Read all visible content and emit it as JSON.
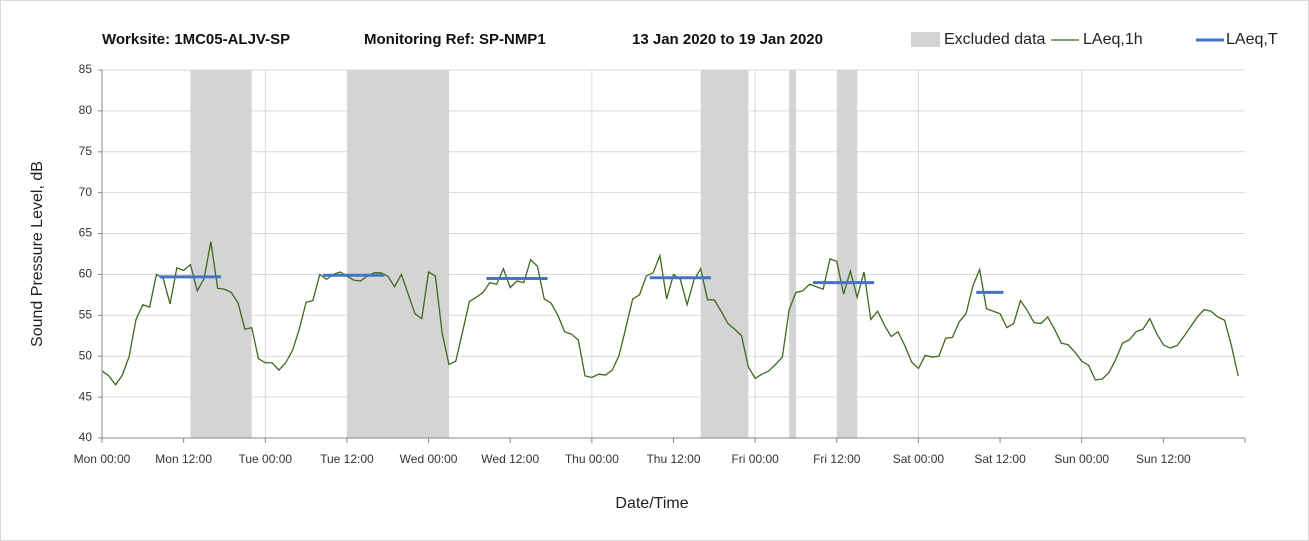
{
  "chart_data": {
    "type": "line",
    "title": [
      "Worksite: 1MC05-ALJV-SP",
      "Monitoring Ref: SP-NMP1",
      "13 Jan 2020 to 19 Jan 2020"
    ],
    "x_label": "Date/Time",
    "y_label": "Sound Pressure Level, dB",
    "xlim": [
      0,
      168
    ],
    "ylim": [
      40,
      85
    ],
    "yticks": [
      40,
      45,
      50,
      55,
      60,
      65,
      70,
      75,
      80,
      85
    ],
    "xticks": [
      {
        "value": 0,
        "label": "Mon 00:00"
      },
      {
        "value": 12,
        "label": "Mon 12:00"
      },
      {
        "value": 24,
        "label": "Tue 00:00"
      },
      {
        "value": 36,
        "label": "Tue 12:00"
      },
      {
        "value": 48,
        "label": "Wed 00:00"
      },
      {
        "value": 60,
        "label": "Wed 12:00"
      },
      {
        "value": 72,
        "label": "Thu 00:00"
      },
      {
        "value": 84,
        "label": "Thu 12:00"
      },
      {
        "value": 96,
        "label": "Fri 00:00"
      },
      {
        "value": 108,
        "label": "Fri 12:00"
      },
      {
        "value": 120,
        "label": "Sat 00:00"
      },
      {
        "value": 132,
        "label": "Sat 12:00"
      },
      {
        "value": 144,
        "label": "Sun 00:00"
      },
      {
        "value": 156,
        "label": "Sun 12:00"
      }
    ],
    "grid": true,
    "excluded": {
      "name": "Excluded data",
      "color": "#d4d4d4",
      "ranges": [
        [
          13,
          22
        ],
        [
          36,
          51
        ],
        [
          88,
          95
        ],
        [
          101,
          102
        ],
        [
          108,
          111
        ]
      ]
    },
    "series": [
      {
        "name": "LAeq,1h",
        "color": "#3c6a1e",
        "x": [
          0,
          1,
          2,
          3,
          4,
          5,
          6,
          7,
          8,
          9,
          10,
          11,
          12,
          13,
          14,
          15,
          16,
          17,
          18,
          19,
          20,
          21,
          22,
          23,
          24,
          25,
          26,
          27,
          28,
          29,
          30,
          31,
          32,
          33,
          34,
          35,
          36,
          37,
          38,
          39,
          40,
          41,
          42,
          43,
          44,
          45,
          46,
          47,
          48,
          49,
          50,
          51,
          52,
          53,
          54,
          55,
          56,
          57,
          58,
          59,
          60,
          61,
          62,
          63,
          64,
          65,
          66,
          67,
          68,
          69,
          70,
          71,
          72,
          73,
          74,
          75,
          76,
          77,
          78,
          79,
          80,
          81,
          82,
          83,
          84,
          85,
          86,
          87,
          88,
          89,
          90,
          91,
          92,
          93,
          94,
          95,
          96,
          97,
          98,
          99,
          100,
          101,
          102,
          103,
          104,
          105,
          106,
          107,
          108,
          109,
          110,
          111,
          112,
          113,
          114,
          115,
          116,
          117,
          118,
          119,
          120,
          121,
          122,
          123,
          124,
          125,
          126,
          127,
          128,
          129,
          130,
          131,
          132,
          133,
          134,
          135,
          136,
          137,
          138,
          139,
          140,
          141,
          142,
          143,
          144,
          145,
          146,
          147,
          148,
          149,
          150,
          151,
          152,
          153,
          154,
          155,
          156,
          157,
          158,
          159,
          160,
          161,
          162,
          163,
          164,
          165,
          166,
          167
        ],
        "values": [
          48.2,
          47.6,
          46.5,
          47.7,
          50,
          54.5,
          56.3,
          56,
          60,
          59.5,
          56.4,
          60.8,
          60.5,
          61.2,
          58,
          59.5,
          64,
          58.3,
          58.2,
          57.8,
          56.5,
          53.3,
          53.5,
          49.7,
          49.2,
          49.2,
          48.3,
          49.2,
          50.7,
          53.3,
          56.6,
          56.8,
          60,
          59.4,
          60,
          60.3,
          59.8,
          59.3,
          59.2,
          59.8,
          60.2,
          60.2,
          59.8,
          58.5,
          60,
          57.6,
          55.2,
          54.6,
          60.3,
          59.8,
          52.8,
          49,
          49.4,
          53,
          56.7,
          57.2,
          57.8,
          59,
          58.8,
          60.7,
          58.4,
          59.2,
          59,
          61.8,
          61,
          57,
          56.5,
          55,
          53,
          52.7,
          52,
          47.6,
          47.4,
          47.8,
          47.7,
          48.3,
          50.1,
          53.5,
          57,
          57.5,
          59.8,
          60.2,
          62.3,
          57,
          60,
          59.4,
          56.3,
          59.3,
          60.7,
          56.9,
          56.9,
          55.5,
          54,
          53.3,
          52.5,
          48.7,
          47.3,
          47.8,
          48.2,
          49,
          49.9,
          55.7,
          57.8,
          58,
          58.8,
          58.5,
          58.2,
          61.9,
          61.6,
          57.6,
          60.4,
          57.2,
          60.3,
          54.5,
          55.5,
          53.8,
          52.4,
          53,
          51.3,
          49.3,
          48.5,
          50.1,
          49.9,
          50,
          52.2,
          52.3,
          54.2,
          55.2,
          58.6,
          60.6,
          55.8,
          55.5,
          55.2,
          53.5,
          54,
          56.8,
          55.6,
          54.1,
          54,
          54.8,
          53.3,
          51.6,
          51.4,
          50.5,
          49.4,
          48.9,
          47.1,
          47.2,
          48,
          49.6,
          51.6,
          52,
          53,
          53.3,
          54.6,
          52.8,
          51.4,
          51,
          51.3,
          52.4,
          53.6,
          54.8,
          55.7,
          55.5,
          54.8,
          54.4,
          51.3,
          47.6
        ]
      },
      {
        "name": "LAeq,T",
        "color": "#4472c4",
        "x_ranges": [
          [
            8.5,
            17.5
          ],
          [
            32.5,
            41.5
          ],
          [
            56.5,
            65.5
          ],
          [
            80.5,
            89.5
          ],
          [
            104.5,
            113.5
          ],
          [
            128.5,
            132.5
          ]
        ],
        "values": [
          59.7,
          59.9,
          59.5,
          59.6,
          59.0,
          57.8
        ]
      }
    ]
  }
}
